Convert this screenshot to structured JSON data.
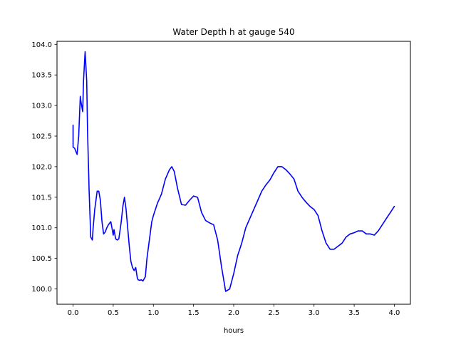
{
  "chart_data": {
    "type": "line",
    "title": "Water Depth h at gauge 540",
    "xlabel": "hours",
    "ylabel": "",
    "xlim": [
      -0.2,
      4.2
    ],
    "ylim": [
      99.75,
      104.05
    ],
    "xticks": [
      0.0,
      0.5,
      1.0,
      1.5,
      2.0,
      2.5,
      3.0,
      3.5,
      4.0
    ],
    "xtick_labels": [
      "0.0",
      "0.5",
      "1.0",
      "1.5",
      "2.0",
      "2.5",
      "3.0",
      "3.5",
      "4.0"
    ],
    "yticks": [
      100.0,
      100.5,
      101.0,
      101.5,
      102.0,
      102.5,
      103.0,
      103.5,
      104.0
    ],
    "ytick_labels": [
      "100.0",
      "100.5",
      "101.0",
      "101.5",
      "102.0",
      "102.5",
      "103.0",
      "103.5",
      "104.0"
    ],
    "grid": false,
    "series": [
      {
        "color": "#0000ff",
        "x": [
          0.0,
          0.0,
          0.02,
          0.05,
          0.07,
          0.09,
          0.1,
          0.12,
          0.13,
          0.15,
          0.17,
          0.18,
          0.2,
          0.22,
          0.24,
          0.25,
          0.27,
          0.3,
          0.32,
          0.34,
          0.36,
          0.38,
          0.4,
          0.42,
          0.44,
          0.47,
          0.5,
          0.51,
          0.53,
          0.55,
          0.57,
          0.6,
          0.62,
          0.64,
          0.66,
          0.68,
          0.7,
          0.72,
          0.74,
          0.76,
          0.78,
          0.8,
          0.81,
          0.83,
          0.85,
          0.87,
          0.9,
          0.92,
          0.95,
          0.98,
          1.0,
          1.05,
          1.1,
          1.15,
          1.2,
          1.23,
          1.26,
          1.3,
          1.35,
          1.4,
          1.45,
          1.5,
          1.55,
          1.6,
          1.65,
          1.7,
          1.75,
          1.8,
          1.85,
          1.9,
          1.95,
          2.0,
          2.05,
          2.1,
          2.15,
          2.2,
          2.25,
          2.3,
          2.35,
          2.4,
          2.45,
          2.5,
          2.55,
          2.6,
          2.65,
          2.7,
          2.75,
          2.8,
          2.85,
          2.9,
          2.95,
          3.0,
          3.05,
          3.1,
          3.15,
          3.2,
          3.25,
          3.3,
          3.35,
          3.4,
          3.45,
          3.5,
          3.55,
          3.6,
          3.65,
          3.7,
          3.75,
          3.8,
          3.85,
          3.9,
          3.95,
          4.0
        ],
        "y": [
          102.68,
          102.32,
          102.3,
          102.2,
          102.5,
          103.15,
          103.05,
          102.9,
          103.4,
          103.88,
          103.4,
          102.6,
          101.6,
          100.85,
          100.8,
          101.0,
          101.3,
          101.6,
          101.6,
          101.45,
          101.1,
          100.9,
          100.93,
          101.0,
          101.05,
          101.1,
          100.88,
          100.97,
          100.82,
          100.8,
          100.82,
          101.1,
          101.35,
          101.5,
          101.3,
          101.0,
          100.7,
          100.45,
          100.35,
          100.3,
          100.35,
          100.18,
          100.15,
          100.14,
          100.15,
          100.13,
          100.2,
          100.5,
          100.8,
          101.1,
          101.2,
          101.4,
          101.55,
          101.8,
          101.95,
          102.0,
          101.92,
          101.65,
          101.38,
          101.37,
          101.45,
          101.52,
          101.5,
          101.25,
          101.12,
          101.08,
          101.05,
          100.8,
          100.35,
          99.96,
          100.0,
          100.25,
          100.55,
          100.75,
          101.0,
          101.15,
          101.3,
          101.45,
          101.6,
          101.7,
          101.78,
          101.9,
          102.0,
          102.0,
          101.95,
          101.88,
          101.8,
          101.6,
          101.5,
          101.42,
          101.35,
          101.3,
          101.2,
          100.95,
          100.75,
          100.65,
          100.65,
          100.7,
          100.75,
          100.85,
          100.9,
          100.92,
          100.95,
          100.95,
          100.9,
          100.9,
          100.88,
          100.95,
          101.05,
          101.15,
          101.25,
          101.35
        ]
      }
    ]
  }
}
